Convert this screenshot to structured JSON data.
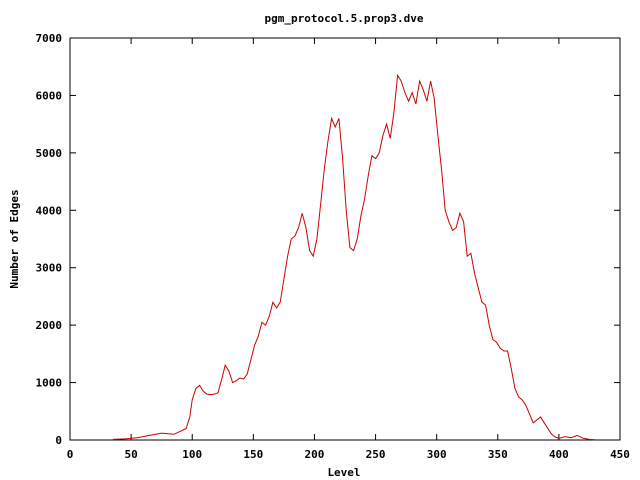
{
  "chart_data": {
    "type": "line",
    "title": "pgm_protocol.5.prop3.dve",
    "xlabel": "Level",
    "ylabel": "Number of Edges",
    "xlim": [
      0,
      450
    ],
    "ylim": [
      0,
      7000
    ],
    "x_ticks": [
      0,
      50,
      100,
      150,
      200,
      250,
      300,
      350,
      400,
      450
    ],
    "y_ticks": [
      0,
      1000,
      2000,
      3000,
      4000,
      5000,
      6000,
      7000
    ],
    "grid": false,
    "legend": "none",
    "series": [
      {
        "color": "#cc0000",
        "points": [
          [
            35,
            10
          ],
          [
            40,
            15
          ],
          [
            45,
            20
          ],
          [
            50,
            30
          ],
          [
            55,
            40
          ],
          [
            60,
            60
          ],
          [
            65,
            80
          ],
          [
            70,
            100
          ],
          [
            75,
            120
          ],
          [
            80,
            110
          ],
          [
            85,
            100
          ],
          [
            90,
            150
          ],
          [
            95,
            200
          ],
          [
            98,
            400
          ],
          [
            100,
            700
          ],
          [
            103,
            900
          ],
          [
            106,
            950
          ],
          [
            109,
            850
          ],
          [
            112,
            800
          ],
          [
            115,
            790
          ],
          [
            118,
            800
          ],
          [
            121,
            820
          ],
          [
            124,
            1050
          ],
          [
            127,
            1300
          ],
          [
            130,
            1200
          ],
          [
            133,
            1000
          ],
          [
            136,
            1030
          ],
          [
            139,
            1080
          ],
          [
            142,
            1060
          ],
          [
            145,
            1150
          ],
          [
            148,
            1400
          ],
          [
            151,
            1650
          ],
          [
            154,
            1800
          ],
          [
            157,
            2050
          ],
          [
            160,
            2000
          ],
          [
            163,
            2150
          ],
          [
            166,
            2400
          ],
          [
            169,
            2300
          ],
          [
            172,
            2400
          ],
          [
            175,
            2800
          ],
          [
            178,
            3200
          ],
          [
            181,
            3500
          ],
          [
            184,
            3550
          ],
          [
            187,
            3700
          ],
          [
            190,
            3950
          ],
          [
            193,
            3700
          ],
          [
            196,
            3300
          ],
          [
            199,
            3200
          ],
          [
            202,
            3500
          ],
          [
            205,
            4100
          ],
          [
            208,
            4700
          ],
          [
            211,
            5200
          ],
          [
            214,
            5600
          ],
          [
            217,
            5450
          ],
          [
            220,
            5600
          ],
          [
            223,
            4900
          ],
          [
            226,
            4000
          ],
          [
            229,
            3350
          ],
          [
            232,
            3300
          ],
          [
            235,
            3500
          ],
          [
            238,
            3900
          ],
          [
            241,
            4200
          ],
          [
            244,
            4600
          ],
          [
            247,
            4950
          ],
          [
            250,
            4900
          ],
          [
            253,
            5000
          ],
          [
            256,
            5300
          ],
          [
            259,
            5500
          ],
          [
            262,
            5250
          ],
          [
            265,
            5700
          ],
          [
            268,
            6350
          ],
          [
            271,
            6250
          ],
          [
            274,
            6050
          ],
          [
            277,
            5900
          ],
          [
            280,
            6050
          ],
          [
            283,
            5850
          ],
          [
            286,
            6250
          ],
          [
            289,
            6100
          ],
          [
            292,
            5900
          ],
          [
            295,
            6250
          ],
          [
            298,
            5950
          ],
          [
            301,
            5300
          ],
          [
            304,
            4700
          ],
          [
            307,
            4000
          ],
          [
            310,
            3800
          ],
          [
            313,
            3650
          ],
          [
            316,
            3700
          ],
          [
            319,
            3950
          ],
          [
            322,
            3800
          ],
          [
            325,
            3200
          ],
          [
            328,
            3250
          ],
          [
            331,
            2900
          ],
          [
            334,
            2650
          ],
          [
            337,
            2400
          ],
          [
            340,
            2350
          ],
          [
            343,
            2000
          ],
          [
            346,
            1750
          ],
          [
            349,
            1700
          ],
          [
            352,
            1600
          ],
          [
            355,
            1550
          ],
          [
            358,
            1550
          ],
          [
            361,
            1250
          ],
          [
            364,
            900
          ],
          [
            367,
            750
          ],
          [
            370,
            700
          ],
          [
            373,
            600
          ],
          [
            376,
            450
          ],
          [
            379,
            300
          ],
          [
            382,
            350
          ],
          [
            385,
            400
          ],
          [
            388,
            300
          ],
          [
            391,
            200
          ],
          [
            394,
            100
          ],
          [
            397,
            50
          ],
          [
            400,
            30
          ],
          [
            405,
            60
          ],
          [
            410,
            40
          ],
          [
            415,
            80
          ],
          [
            420,
            30
          ],
          [
            425,
            10
          ],
          [
            430,
            5
          ]
        ]
      }
    ]
  }
}
